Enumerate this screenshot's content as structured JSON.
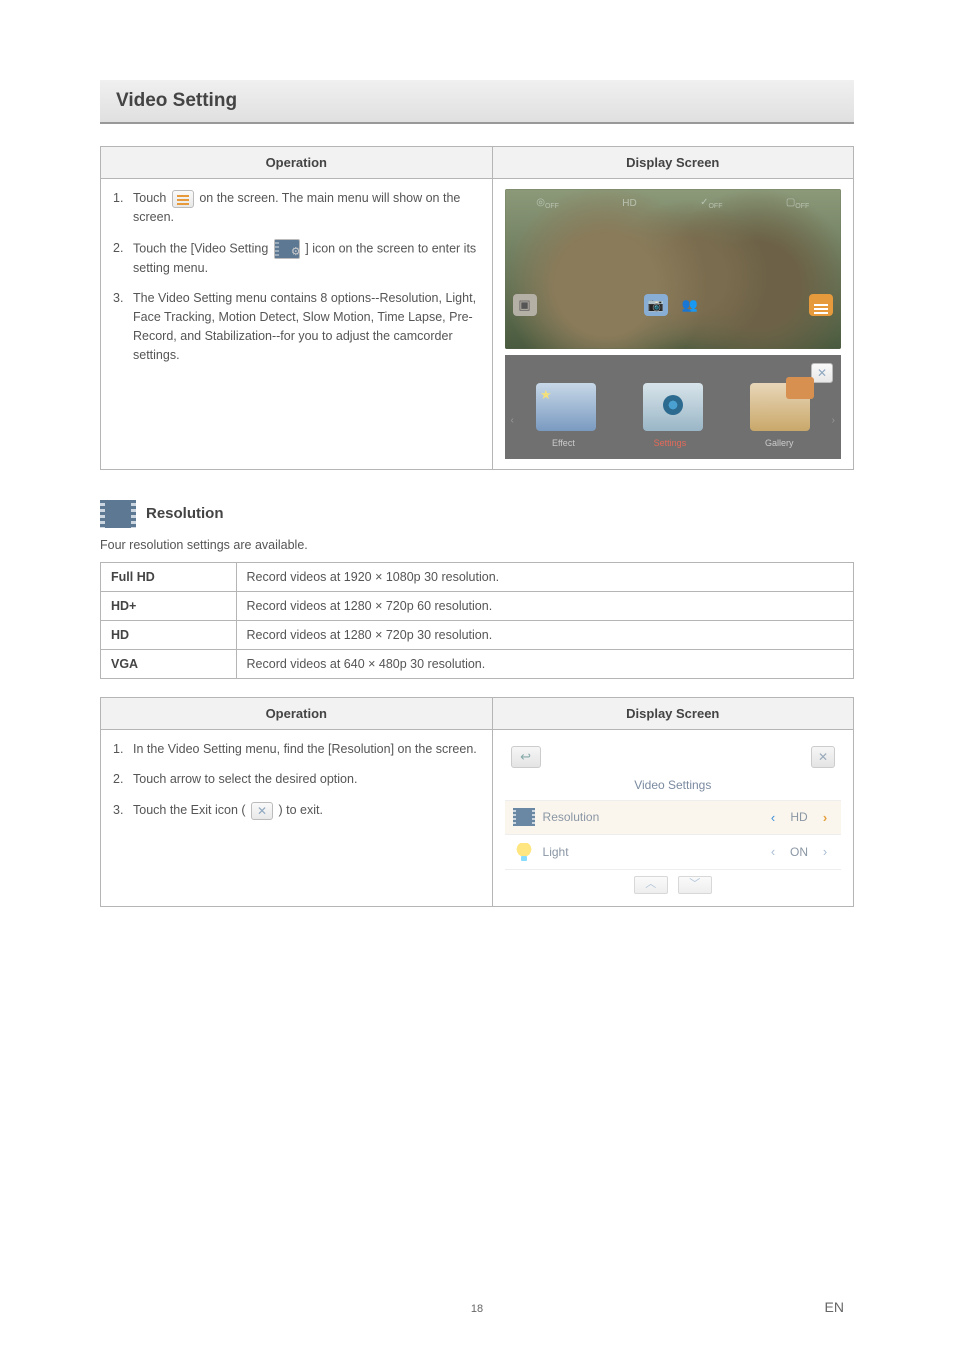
{
  "section_title": "Video Setting",
  "table1": {
    "headers": {
      "op": "Operation",
      "ds": "Display Screen"
    },
    "steps": [
      {
        "pre": "Touch ",
        "post": " on the screen. The main menu will show on the screen."
      },
      {
        "pre": "Touch the [Video Setting ",
        "post": " ] icon on the screen to enter its setting menu."
      },
      {
        "text": "The Video Setting menu contains 8 options--Resolution, Light, Face Tracking, Motion Detect, Slow Motion, Time Lapse, Pre-Record, and Stabilization--for you to adjust the camcorder settings."
      }
    ],
    "viewfinder": {
      "hd": "HD",
      "off": "OFF"
    },
    "carousel": {
      "effect": "Effect",
      "settings": "Settings",
      "gallery": "Gallery"
    }
  },
  "resolution": {
    "heading": "Resolution",
    "lead": "Four resolution settings are available.",
    "rows": [
      {
        "k": "Full HD",
        "v": "Record videos at 1920 × 1080p 30 resolution."
      },
      {
        "k": "HD+",
        "v": "Record videos at 1280 × 720p 60 resolution."
      },
      {
        "k": "HD",
        "v": "Record videos at 1280 × 720p 30 resolution."
      },
      {
        "k": "VGA",
        "v": "Record videos at 640 × 480p 30 resolution."
      }
    ]
  },
  "table2": {
    "headers": {
      "op": "Operation",
      "ds": "Display Screen"
    },
    "steps": [
      "In the Video Setting menu, find the [Resolution] on the screen.",
      "Touch arrow to select the desired option."
    ],
    "step3_pre": "Touch the Exit icon ( ",
    "step3_post": " ) to exit.",
    "vs": {
      "title": "Video Settings",
      "rows": [
        {
          "label": "Resolution",
          "value": "HD"
        },
        {
          "label": "Light",
          "value": "ON"
        }
      ]
    }
  },
  "page_number": "18",
  "lang": "EN"
}
